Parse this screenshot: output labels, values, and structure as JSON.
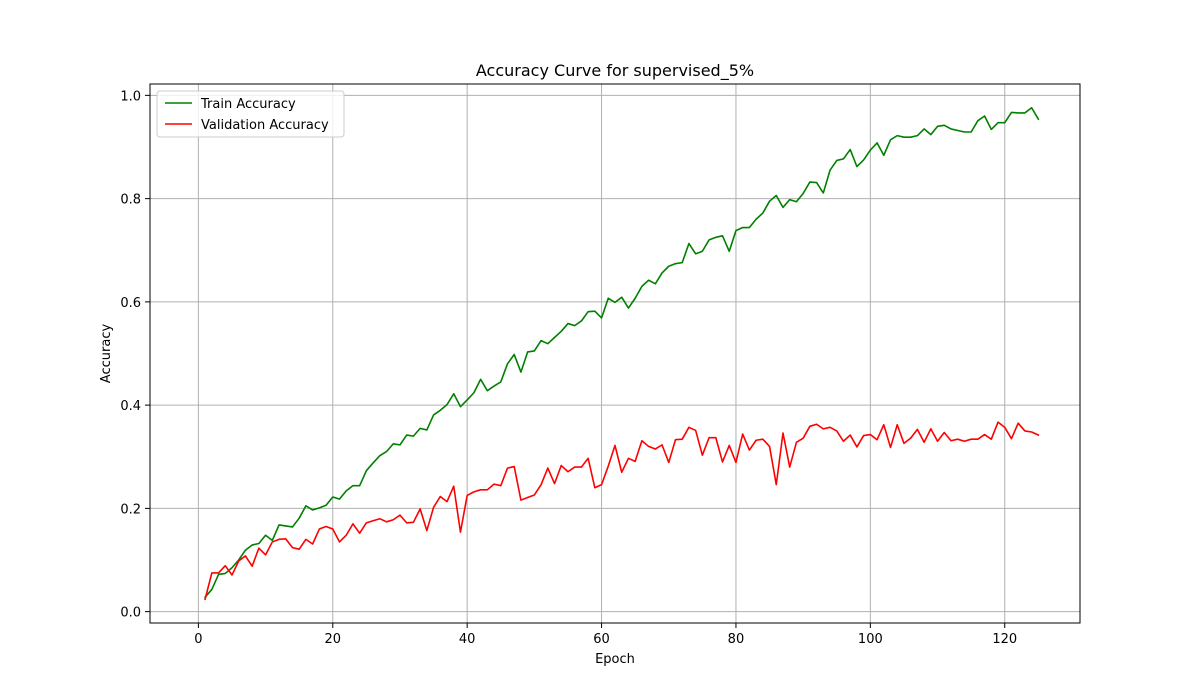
{
  "chart_data": {
    "type": "line",
    "title": "Accuracy Curve for supervised_5%",
    "xlabel": "Epoch",
    "ylabel": "Accuracy",
    "xlim": [
      -7.2,
      131.2
    ],
    "ylim": [
      -0.022,
      1.022
    ],
    "xticks": [
      0,
      20,
      40,
      60,
      80,
      100,
      120
    ],
    "yticks": [
      0.0,
      0.2,
      0.4,
      0.6,
      0.8,
      1.0
    ],
    "xtick_labels": [
      "0",
      "20",
      "40",
      "60",
      "80",
      "100",
      "120"
    ],
    "ytick_labels": [
      "0.0",
      "0.2",
      "0.4",
      "0.6",
      "0.8",
      "1.0"
    ],
    "grid": true,
    "legend_position": "upper-left",
    "x": [
      1,
      2,
      3,
      4,
      5,
      6,
      7,
      8,
      9,
      10,
      11,
      12,
      13,
      14,
      15,
      16,
      17,
      18,
      19,
      20,
      21,
      22,
      23,
      24,
      25,
      26,
      27,
      28,
      29,
      30,
      31,
      32,
      33,
      34,
      35,
      36,
      37,
      38,
      39,
      40,
      41,
      42,
      43,
      44,
      45,
      46,
      47,
      48,
      49,
      50,
      51,
      52,
      53,
      54,
      55,
      56,
      57,
      58,
      59,
      60,
      61,
      62,
      63,
      64,
      65,
      66,
      67,
      68,
      69,
      70,
      71,
      72,
      73,
      74,
      75,
      76,
      77,
      78,
      79,
      80,
      81,
      82,
      83,
      84,
      85,
      86,
      87,
      88,
      89,
      90,
      91,
      92,
      93,
      94,
      95,
      96,
      97,
      98,
      99,
      100,
      101,
      102,
      103,
      104,
      105,
      106,
      107,
      108,
      109,
      110,
      111,
      112,
      113,
      114,
      115,
      116,
      117,
      118,
      119,
      120,
      121,
      122,
      123,
      124,
      125
    ],
    "series": [
      {
        "name": "Train Accuracy",
        "color": "#008000",
        "values": [
          0.028,
          0.043,
          0.072,
          0.074,
          0.085,
          0.1,
          0.119,
          0.129,
          0.132,
          0.148,
          0.138,
          0.168,
          0.166,
          0.164,
          0.181,
          0.205,
          0.197,
          0.201,
          0.206,
          0.222,
          0.218,
          0.234,
          0.244,
          0.244,
          0.273,
          0.288,
          0.302,
          0.31,
          0.325,
          0.323,
          0.342,
          0.34,
          0.355,
          0.352,
          0.381,
          0.39,
          0.401,
          0.422,
          0.397,
          0.41,
          0.424,
          0.45,
          0.428,
          0.437,
          0.445,
          0.48,
          0.498,
          0.464,
          0.503,
          0.505,
          0.525,
          0.519,
          0.531,
          0.543,
          0.558,
          0.554,
          0.563,
          0.581,
          0.582,
          0.569,
          0.607,
          0.599,
          0.609,
          0.588,
          0.607,
          0.63,
          0.642,
          0.635,
          0.656,
          0.669,
          0.674,
          0.676,
          0.713,
          0.693,
          0.698,
          0.72,
          0.725,
          0.728,
          0.698,
          0.738,
          0.744,
          0.744,
          0.76,
          0.772,
          0.795,
          0.806,
          0.783,
          0.798,
          0.794,
          0.81,
          0.832,
          0.831,
          0.811,
          0.855,
          0.874,
          0.877,
          0.895,
          0.862,
          0.875,
          0.894,
          0.908,
          0.884,
          0.914,
          0.922,
          0.919,
          0.919,
          0.922,
          0.935,
          0.924,
          0.94,
          0.942,
          0.935,
          0.932,
          0.929,
          0.929,
          0.951,
          0.96,
          0.934,
          0.947,
          0.947,
          0.967,
          0.966,
          0.966,
          0.976,
          0.954
        ]
      },
      {
        "name": "Validation Accuracy",
        "color": "#ff0000",
        "values": [
          0.024,
          0.075,
          0.075,
          0.089,
          0.071,
          0.098,
          0.108,
          0.088,
          0.123,
          0.11,
          0.135,
          0.14,
          0.141,
          0.124,
          0.121,
          0.14,
          0.131,
          0.16,
          0.165,
          0.16,
          0.135,
          0.148,
          0.17,
          0.152,
          0.172,
          0.176,
          0.18,
          0.174,
          0.178,
          0.187,
          0.172,
          0.173,
          0.199,
          0.157,
          0.202,
          0.223,
          0.213,
          0.243,
          0.154,
          0.225,
          0.232,
          0.236,
          0.236,
          0.247,
          0.244,
          0.278,
          0.281,
          0.216,
          0.221,
          0.226,
          0.246,
          0.278,
          0.248,
          0.283,
          0.271,
          0.28,
          0.28,
          0.297,
          0.24,
          0.246,
          0.282,
          0.322,
          0.27,
          0.297,
          0.291,
          0.331,
          0.32,
          0.315,
          0.323,
          0.289,
          0.333,
          0.334,
          0.357,
          0.351,
          0.303,
          0.337,
          0.337,
          0.29,
          0.322,
          0.289,
          0.344,
          0.313,
          0.332,
          0.334,
          0.32,
          0.246,
          0.346,
          0.28,
          0.328,
          0.336,
          0.359,
          0.363,
          0.354,
          0.357,
          0.35,
          0.33,
          0.342,
          0.319,
          0.341,
          0.343,
          0.333,
          0.362,
          0.318,
          0.362,
          0.326,
          0.336,
          0.353,
          0.328,
          0.354,
          0.33,
          0.347,
          0.331,
          0.334,
          0.33,
          0.334,
          0.334,
          0.343,
          0.334,
          0.367,
          0.357,
          0.335,
          0.365,
          0.35,
          0.348,
          0.342
        ]
      }
    ]
  }
}
